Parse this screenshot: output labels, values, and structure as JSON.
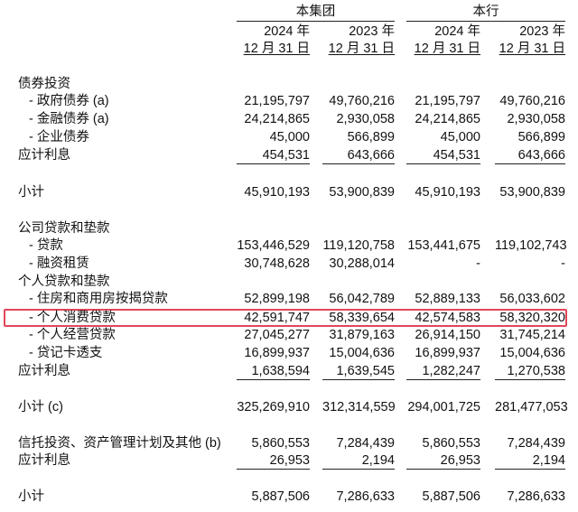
{
  "header": {
    "groups": [
      "本集团",
      "本行"
    ],
    "years": [
      "2024 年",
      "2023 年",
      "2024 年",
      "2023 年"
    ],
    "dates": [
      "12 月 31 日",
      "12 月 31 日",
      "12 月 31 日",
      "12 月 31 日"
    ]
  },
  "highlight_color": "#e0475a",
  "rows": [
    {
      "label": "债券投资",
      "indent": false,
      "values": [
        "",
        "",
        "",
        ""
      ]
    },
    {
      "label": "- 政府债券 (a)",
      "indent": true,
      "values": [
        "21,195,797",
        "49,760,216",
        "21,195,797",
        "49,760,216"
      ]
    },
    {
      "label": "- 金融债券 (a)",
      "indent": true,
      "values": [
        "24,214,865",
        "2,930,058",
        "24,214,865",
        "2,930,058"
      ]
    },
    {
      "label": "- 企业债券",
      "indent": true,
      "values": [
        "45,000",
        "566,899",
        "45,000",
        "566,899"
      ]
    },
    {
      "label": "应计利息",
      "indent": false,
      "underline": true,
      "values": [
        "454,531",
        "643,666",
        "454,531",
        "643,666"
      ]
    },
    {
      "label": "小计",
      "indent": false,
      "values": [
        "45,910,193",
        "53,900,839",
        "45,910,193",
        "53,900,839"
      ]
    },
    {
      "label": "公司贷款和垫款",
      "indent": false,
      "values": [
        "",
        "",
        "",
        ""
      ]
    },
    {
      "label": "- 贷款",
      "indent": true,
      "values": [
        "153,446,529",
        "119,120,758",
        "153,441,675",
        "119,102,743"
      ]
    },
    {
      "label": "- 融资租赁",
      "indent": true,
      "values": [
        "30,748,628",
        "30,288,014",
        "-",
        "-"
      ]
    },
    {
      "label": "个人贷款和垫款",
      "indent": false,
      "values": [
        "",
        "",
        "",
        ""
      ]
    },
    {
      "label": "- 住房和商用房按揭贷款",
      "indent": true,
      "values": [
        "52,899,198",
        "56,042,789",
        "52,889,133",
        "56,033,602"
      ]
    },
    {
      "label": "- 个人消费贷款",
      "indent": true,
      "highlight": true,
      "values": [
        "42,591,747",
        "58,339,654",
        "42,574,583",
        "58,320,320"
      ]
    },
    {
      "label": "- 个人经营贷款",
      "indent": true,
      "values": [
        "27,045,277",
        "31,879,163",
        "26,914,150",
        "31,745,214"
      ]
    },
    {
      "label": "- 贷记卡透支",
      "indent": true,
      "values": [
        "16,899,937",
        "15,004,636",
        "16,899,937",
        "15,004,636"
      ]
    },
    {
      "label": "应计利息",
      "indent": false,
      "underline": true,
      "values": [
        "1,638,594",
        "1,639,545",
        "1,282,247",
        "1,270,538"
      ]
    },
    {
      "label": "小计 (c)",
      "indent": false,
      "values": [
        "325,269,910",
        "312,314,559",
        "294,001,725",
        "281,477,053"
      ]
    },
    {
      "label": "信托投资、资产管理计划及其他 (b)",
      "indent": false,
      "values": [
        "5,860,553",
        "7,284,439",
        "5,860,553",
        "7,284,439"
      ]
    },
    {
      "label": "应计利息",
      "indent": false,
      "underline": true,
      "values": [
        "26,953",
        "2,194",
        "26,953",
        "2,194"
      ]
    },
    {
      "label": "小计",
      "indent": false,
      "values": [
        "5,887,506",
        "7,286,633",
        "5,887,506",
        "7,286,633"
      ]
    }
  ]
}
